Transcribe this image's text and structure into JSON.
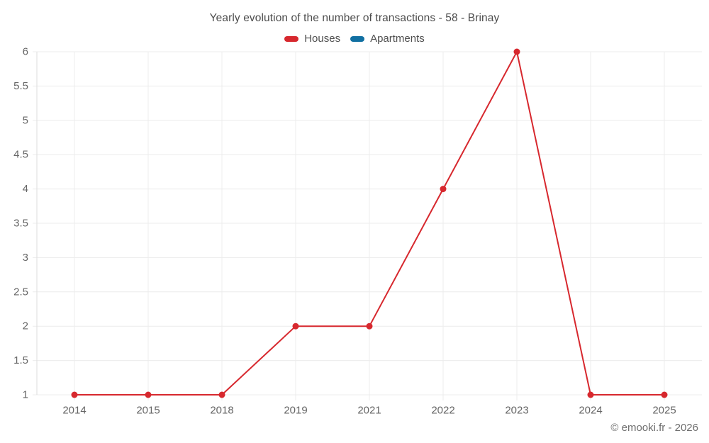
{
  "title": "Yearly evolution of the number of transactions - 58 - Brinay",
  "watermark": "© emooki.fr - 2026",
  "colors": {
    "houses": "#d7282e",
    "apartments": "#1170a2",
    "grid": "#ececec",
    "axis_line": "#dedede",
    "axis_text": "#666666",
    "title_text": "#4c4c4c"
  },
  "chart_data": {
    "type": "line",
    "title": "Yearly evolution of the number of transactions - 58 - Brinay",
    "categories": [
      "2014",
      "2015",
      "2018",
      "2019",
      "2021",
      "2022",
      "2023",
      "2024",
      "2025"
    ],
    "series": [
      {
        "name": "Houses",
        "color": "#d7282e",
        "values": [
          1,
          1,
          1,
          2,
          2,
          4,
          6,
          1,
          1
        ]
      },
      {
        "name": "Apartments",
        "color": "#1170a2",
        "values": []
      }
    ],
    "xlabel": "",
    "ylabel": "",
    "ylim": [
      1,
      6
    ],
    "ytick_step": 0.5,
    "yticks": [
      "1",
      "1.5",
      "2",
      "2.5",
      "3",
      "3.5",
      "4",
      "4.5",
      "5",
      "5.5",
      "6"
    ],
    "grid": true,
    "legend_position": "top",
    "marker_radius": 4.5,
    "line_width": 2
  }
}
